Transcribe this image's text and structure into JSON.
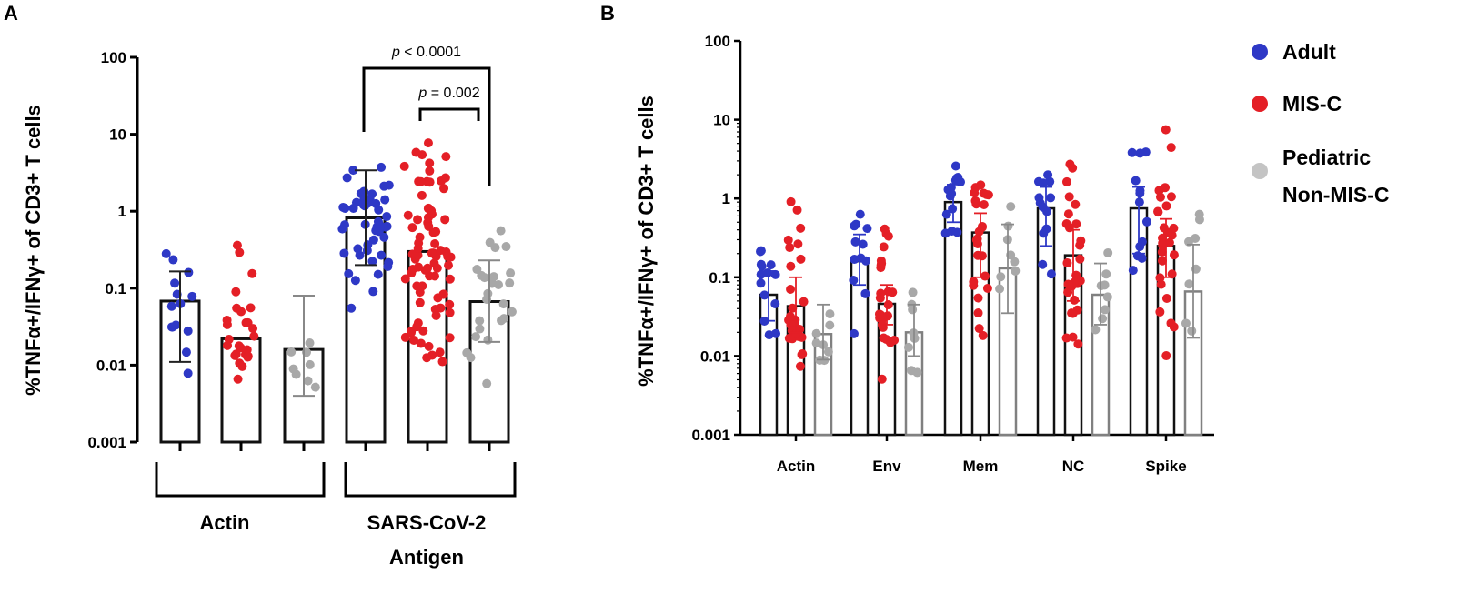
{
  "panels": {
    "a_label": "A",
    "b_label": "B"
  },
  "legend": [
    {
      "label": "Adult",
      "color": "#2e38c6"
    },
    {
      "label": "MIS-C",
      "color": "#e41f26"
    },
    {
      "label": "Pediatric",
      "color": "#c4c4c4"
    },
    {
      "label": "Non-MIS-C",
      "color": "#c4c4c4"
    }
  ],
  "colors": {
    "adult": "#2e38c6",
    "misc": "#e41f26",
    "ped": "#a8a8a8",
    "ped_bar": "#808080"
  },
  "chart_data": [
    {
      "type": "bar",
      "title": "A",
      "ylabel": "%TNFα+/IFNγ+ of CD3+ T cells",
      "yscale": "log",
      "ylim": [
        0.001,
        100
      ],
      "ytick_labels": [
        "0.001",
        "0.01",
        "0.1",
        "1",
        "10",
        "100"
      ],
      "groups": [
        {
          "label": "Actin",
          "categories": [
            "Adult",
            "MIS-C",
            "Pediatric Non-MIS-C"
          ]
        },
        {
          "label": "SARS-CoV-2",
          "label2": "Antigen",
          "categories": [
            "Adult",
            "MIS-C",
            "Pediatric Non-MIS-C"
          ]
        }
      ],
      "series": [
        {
          "name": "Adult",
          "values": [
            0.068,
            0.82
          ],
          "err_low": [
            0.011,
            0.2
          ],
          "err_high": [
            0.165,
            3.4
          ]
        },
        {
          "name": "MIS-C",
          "values": [
            0.022,
            0.3
          ],
          "err_low": null,
          "err_high": null
        },
        {
          "name": "Pediatric Non-MIS-C",
          "values": [
            0.016,
            0.067
          ],
          "err_low": [
            0.004,
            0.02
          ],
          "err_high": [
            0.08,
            0.23
          ]
        }
      ],
      "annotations": [
        {
          "text_prefix": "p",
          "text": " < 0.0001",
          "between": [
            "SARS-CoV-2 Adult",
            "SARS-CoV-2 Pediatric Non-MIS-C"
          ]
        },
        {
          "text_prefix": "p",
          "text": " = 0.002",
          "between": [
            "SARS-CoV-2 MIS-C",
            "SARS-CoV-2 Pediatric Non-MIS-C"
          ]
        }
      ]
    },
    {
      "type": "bar",
      "title": "B",
      "ylabel": "%TNFα+/IFNγ+ of CD3+ T cells",
      "yscale": "log",
      "ylim": [
        0.001,
        100
      ],
      "ytick_labels": [
        "0.001",
        "0.01",
        "0.1",
        "1",
        "10",
        "100"
      ],
      "categories": [
        "Actin",
        "Env",
        "Mem",
        "NC",
        "Spike"
      ],
      "series": [
        {
          "name": "Adult",
          "values": [
            0.06,
            0.16,
            0.9,
            0.75,
            0.75
          ],
          "err_low": [
            0.028,
            0.08,
            0.5,
            0.25,
            0.2
          ],
          "err_high": [
            0.12,
            0.35,
            1.5,
            1.4,
            1.4
          ]
        },
        {
          "name": "MIS-C",
          "values": [
            0.043,
            0.046,
            0.37,
            0.19,
            0.25
          ],
          "err_low": [
            0.02,
            0.025,
            0.1,
            0.05,
            0.1
          ],
          "err_high": [
            0.1,
            0.08,
            0.65,
            0.4,
            0.55
          ]
        },
        {
          "name": "Pediatric Non-MIS-C",
          "values": [
            0.019,
            0.02,
            0.13,
            0.06,
            0.066
          ],
          "err_low": [
            0.009,
            0.01,
            0.035,
            0.025,
            0.017
          ],
          "err_high": [
            0.045,
            0.045,
            0.47,
            0.15,
            0.26
          ]
        }
      ]
    }
  ]
}
